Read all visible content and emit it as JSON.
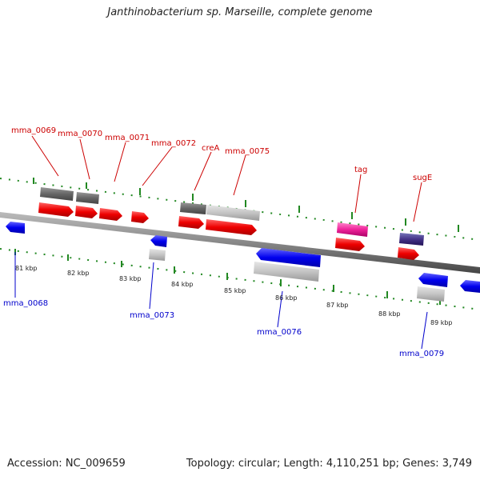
{
  "title": "Janthinobacterium sp. Marseille, complete genome",
  "footer": {
    "accession": "Accession: NC_009659",
    "topology": "Topology: circular; Length: 4,110,251 bp; Genes: 3,749"
  },
  "colors": {
    "forward_label": "#cc0000",
    "reverse_label": "#0000cc",
    "track": "#888888",
    "tick": "#228822"
  },
  "scale_ticks": [
    "81 kbp",
    "82 kbp",
    "83 kbp",
    "84 kbp",
    "85 kbp",
    "86 kbp",
    "87 kbp",
    "88 kbp",
    "89 kbp"
  ],
  "forward_genes": [
    "mma_0069",
    "mma_0070",
    "mma_0071",
    "mma_0072",
    "creA",
    "mma_0075",
    "tag",
    "sugE"
  ],
  "reverse_genes": [
    "mma_0068",
    "mma_0073",
    "mma_0076",
    "mma_0079"
  ]
}
